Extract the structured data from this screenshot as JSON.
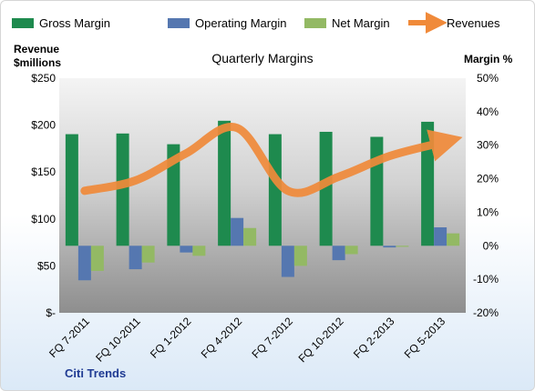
{
  "chart_data": {
    "type": "bar",
    "title": "Quarterly Margins",
    "brand": "Citi Trends",
    "left_axis_title": [
      "Revenue",
      "$millions"
    ],
    "right_axis_title": "Margin %",
    "categories": [
      "FQ 7-2011",
      "FQ 10-2011",
      "FQ 1-2012",
      "FQ 4-2012",
      "FQ 7-2012",
      "FQ 10-2012",
      "FQ 2-2013",
      "FQ 5-2013"
    ],
    "left_ticks": [
      "$250",
      "$200",
      "$150",
      "$100",
      "$50",
      "$-"
    ],
    "right_ticks": [
      "50%",
      "40%",
      "30%",
      "20%",
      "10%",
      "0%",
      "-10%",
      "-20%"
    ],
    "ylim_left": [
      0,
      250
    ],
    "ylim_right": [
      -20,
      50
    ],
    "series": [
      {
        "name": "Gross Margin",
        "axis": "right",
        "type": "bar",
        "color": "#1e8a4e",
        "values": [
          33.3,
          33.5,
          30.3,
          37.3,
          33.3,
          34.0,
          32.5,
          37.0
        ]
      },
      {
        "name": "Operating Margin",
        "axis": "right",
        "type": "bar",
        "color": "#5577b0",
        "values": [
          -10.3,
          -7.0,
          -2.0,
          8.3,
          -9.3,
          -4.3,
          -0.5,
          5.5
        ]
      },
      {
        "name": "Net Margin",
        "axis": "right",
        "type": "bar",
        "color": "#93b964",
        "values": [
          -7.5,
          -5.0,
          -3.0,
          5.3,
          -6.0,
          -2.5,
          -0.3,
          3.7
        ]
      },
      {
        "name": "Revenues",
        "axis": "left",
        "type": "line",
        "color": "#f08a3a",
        "values": [
          130,
          141,
          170,
          197,
          130,
          145,
          167,
          181
        ]
      }
    ],
    "grid": false,
    "legend": "top"
  }
}
